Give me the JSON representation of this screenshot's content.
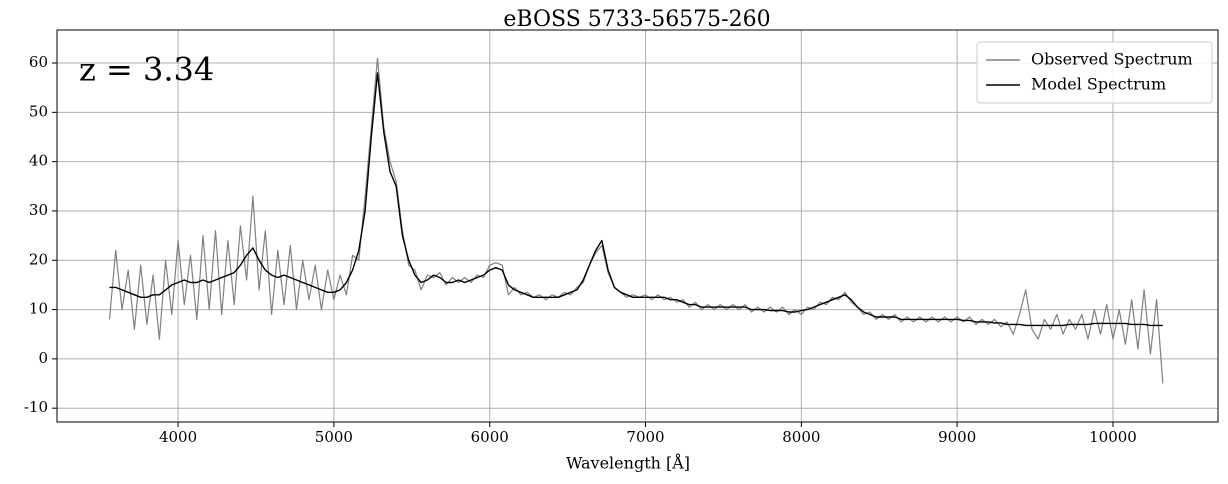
{
  "chart_data": {
    "type": "line",
    "title": "eBOSS 5733-56575-260",
    "x_label": "Wavelength [Å]",
    "annotation": "z = 3.34",
    "x": [
      3560,
      3600,
      3640,
      3680,
      3720,
      3760,
      3800,
      3840,
      3880,
      3920,
      3960,
      4000,
      4040,
      4080,
      4120,
      4160,
      4200,
      4240,
      4280,
      4320,
      4360,
      4400,
      4440,
      4480,
      4520,
      4560,
      4600,
      4640,
      4680,
      4720,
      4760,
      4800,
      4840,
      4880,
      4920,
      4960,
      5000,
      5040,
      5080,
      5120,
      5160,
      5200,
      5240,
      5280,
      5320,
      5360,
      5400,
      5440,
      5480,
      5520,
      5560,
      5600,
      5640,
      5680,
      5720,
      5760,
      5800,
      5840,
      5880,
      5920,
      5960,
      6000,
      6040,
      6080,
      6120,
      6160,
      6200,
      6240,
      6280,
      6320,
      6360,
      6400,
      6440,
      6480,
      6520,
      6560,
      6600,
      6640,
      6680,
      6720,
      6760,
      6800,
      6840,
      6880,
      6920,
      6960,
      7000,
      7040,
      7080,
      7120,
      7160,
      7200,
      7240,
      7280,
      7320,
      7360,
      7400,
      7440,
      7480,
      7520,
      7560,
      7600,
      7640,
      7680,
      7720,
      7760,
      7800,
      7840,
      7880,
      7920,
      7960,
      8000,
      8040,
      8080,
      8120,
      8160,
      8200,
      8240,
      8280,
      8320,
      8360,
      8400,
      8440,
      8480,
      8520,
      8560,
      8600,
      8640,
      8680,
      8720,
      8760,
      8800,
      8840,
      8880,
      8920,
      8960,
      9000,
      9040,
      9080,
      9120,
      9160,
      9200,
      9240,
      9280,
      9320,
      9360,
      9400,
      9440,
      9480,
      9520,
      9560,
      9600,
      9640,
      9680,
      9720,
      9760,
      9800,
      9840,
      9880,
      9920,
      9960,
      10000,
      10040,
      10080,
      10120,
      10160,
      10200,
      10240,
      10280,
      10320
    ],
    "series": [
      {
        "name": "Observed Spectrum",
        "color": "#808080",
        "values": [
          8,
          22,
          10,
          18,
          6,
          19,
          7,
          17,
          4,
          20,
          9,
          24,
          11,
          21,
          8,
          25,
          10,
          26,
          9,
          24,
          11,
          27,
          16,
          33,
          14,
          26,
          9,
          22,
          11,
          23,
          10,
          20,
          12,
          19,
          10,
          18,
          12,
          17,
          13,
          21,
          20,
          33,
          47,
          61,
          47,
          40,
          36,
          26,
          19,
          18,
          14,
          17,
          16.5,
          17.5,
          15,
          16.5,
          15.5,
          16.5,
          15.5,
          17,
          16.5,
          19,
          19.5,
          19,
          13,
          14.5,
          13,
          13.5,
          12.5,
          13,
          12,
          13,
          12.5,
          13.5,
          13,
          14.5,
          15.5,
          19,
          21.5,
          23,
          17.5,
          14.5,
          13.5,
          12.5,
          13,
          12.5,
          13,
          12,
          13,
          12,
          12.5,
          11.5,
          12,
          10.5,
          11.5,
          10,
          11,
          10,
          11,
          10,
          11,
          10,
          11,
          9.5,
          10.5,
          9.5,
          10.5,
          9.5,
          10.5,
          9,
          10,
          9,
          10.5,
          10,
          11.5,
          11,
          12.5,
          12,
          13.5,
          11.5,
          10.5,
          9,
          9.5,
          8,
          9,
          8,
          9,
          7.5,
          8.5,
          7.5,
          8.5,
          7.5,
          8.5,
          7.5,
          8.5,
          7.5,
          8.5,
          7.5,
          8.5,
          7,
          8,
          7,
          8,
          6.5,
          7.5,
          5,
          9,
          14,
          6,
          4,
          8,
          6,
          9,
          5,
          8,
          6,
          9,
          4,
          10,
          5,
          11,
          4,
          10,
          3,
          12,
          2,
          14,
          1,
          12,
          -5
        ]
      },
      {
        "name": "Model Spectrum",
        "color": "#000000",
        "values": [
          14.5,
          14.5,
          14,
          13.5,
          13,
          12.5,
          12.5,
          13,
          13,
          14,
          15,
          15.5,
          16,
          15.5,
          15.5,
          16,
          15.5,
          16,
          16.5,
          17,
          17.5,
          19,
          21,
          22.5,
          20,
          18,
          17,
          16.5,
          17,
          16.5,
          16,
          15.5,
          15,
          14.5,
          14,
          13.5,
          13.5,
          14,
          15.5,
          18,
          22,
          30,
          45,
          58,
          46,
          38,
          35,
          25,
          20,
          17,
          15.5,
          16,
          17,
          16.5,
          15.5,
          15.5,
          16,
          15.5,
          16,
          16.5,
          17,
          18,
          18.5,
          18,
          15,
          14,
          13.5,
          13,
          12.5,
          12.5,
          12.5,
          12.5,
          12.5,
          13,
          13.5,
          14,
          16,
          19,
          22,
          24,
          18,
          14.5,
          13.5,
          13,
          12.5,
          12.5,
          12.5,
          12.5,
          12.5,
          12.5,
          12,
          12,
          11.5,
          11,
          11,
          10.5,
          10.5,
          10.5,
          10.5,
          10.5,
          10.5,
          10.5,
          10.5,
          10,
          10,
          10,
          9.8,
          9.8,
          9.8,
          9.5,
          9.5,
          9.8,
          10,
          10.5,
          11,
          11.5,
          12,
          12.5,
          13,
          12,
          10.5,
          9.5,
          9,
          8.5,
          8.5,
          8.5,
          8.5,
          8,
          8,
          8,
          8,
          8,
          8,
          8,
          8,
          8,
          8,
          7.8,
          7.8,
          7.5,
          7.5,
          7.5,
          7.3,
          7.3,
          7,
          7,
          7,
          6.8,
          6.8,
          6.8,
          6.8,
          6.8,
          6.8,
          6.8,
          7,
          7,
          7,
          7,
          7.2,
          7.2,
          7.2,
          7.2,
          7.2,
          7.2,
          7,
          7,
          7,
          6.8,
          6.8,
          6.8
        ]
      }
    ],
    "xlim": [
      3223,
      10674
    ],
    "ylim": [
      -12.8,
      66.7
    ],
    "xticks": [
      4000,
      5000,
      6000,
      7000,
      8000,
      9000,
      10000
    ],
    "yticks": [
      -10,
      0,
      10,
      20,
      30,
      40,
      50,
      60
    ],
    "grid": true,
    "legend": "upper right"
  }
}
